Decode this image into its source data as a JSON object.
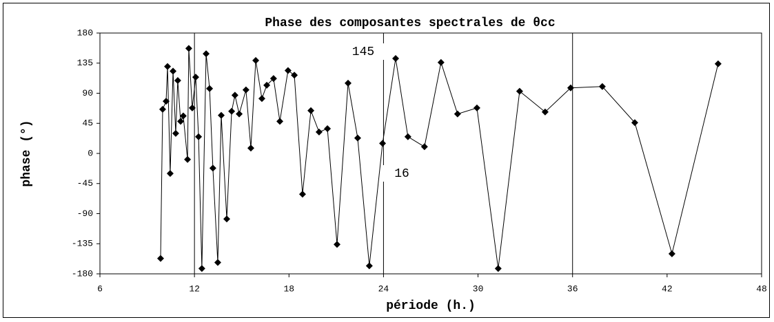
{
  "chart_data": {
    "type": "line",
    "title": "Phase des composantes spectrales de θcc",
    "xlabel": "période (h.)",
    "ylabel": "phase (°)",
    "annotations": [
      "145",
      "16"
    ],
    "x": [
      9.85,
      9.98,
      10.2,
      10.29,
      10.46,
      10.64,
      10.81,
      10.94,
      11.12,
      11.29,
      11.56,
      11.64,
      11.86,
      12.08,
      12.26,
      12.47,
      12.74,
      12.96,
      13.17,
      13.48,
      13.7,
      14.05,
      14.36,
      14.57,
      14.84,
      15.27,
      15.58,
      15.89,
      16.28,
      16.59,
      17.02,
      17.42,
      17.94,
      18.34,
      18.86,
      19.39,
      19.91,
      20.44,
      21.05,
      21.75,
      22.36,
      23.1,
      23.94,
      24.77,
      25.55,
      26.6,
      27.65,
      28.7,
      29.93,
      31.28,
      32.64,
      34.26,
      35.88,
      37.89,
      39.95,
      42.31,
      45.24
    ],
    "values": [
      -157,
      66,
      78,
      130,
      -30,
      123,
      30,
      109,
      48,
      56,
      -9,
      157,
      68,
      114,
      25,
      -172,
      149,
      97,
      -22,
      -163,
      57,
      -98,
      63,
      87,
      59,
      95,
      8,
      139,
      82,
      102,
      112,
      48,
      124,
      117,
      -61,
      64,
      32,
      37,
      -136,
      105,
      23,
      -168,
      15,
      142,
      25,
      10,
      136,
      59,
      68,
      -172,
      93,
      62,
      98,
      100,
      46,
      -150,
      134
    ],
    "color": "#000000",
    "xlim": [
      6,
      48
    ],
    "xticks": [
      6,
      12,
      18,
      24,
      30,
      36,
      42,
      48
    ],
    "ylim": [
      -180,
      180
    ],
    "yticks": [
      -180,
      -135,
      -90,
      -45,
      0,
      45,
      90,
      135,
      180
    ],
    "xgrid": [
      12,
      24,
      36
    ]
  }
}
